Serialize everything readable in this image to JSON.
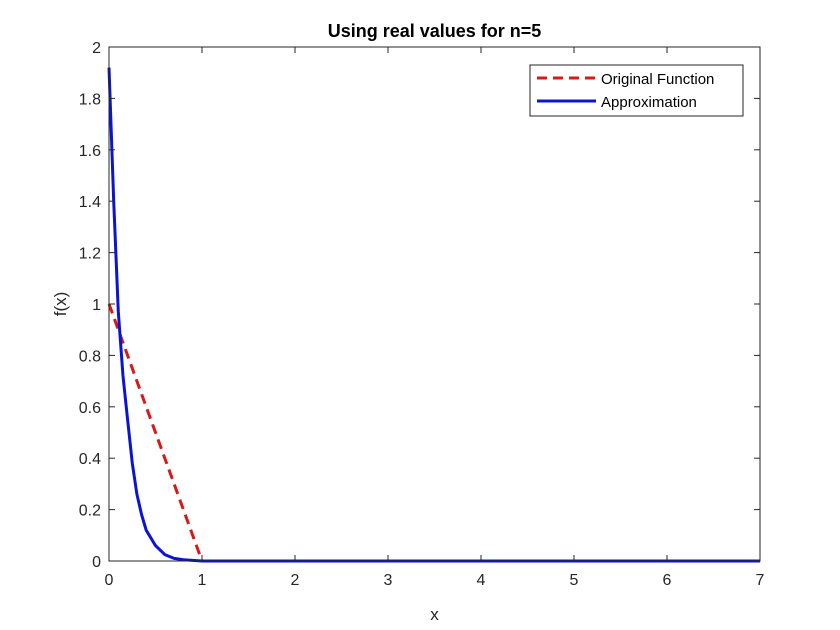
{
  "chart_data": {
    "type": "line",
    "title": "Using real values for n=5",
    "xlabel": "x",
    "ylabel": "f(x)",
    "xlim": [
      0,
      7
    ],
    "ylim": [
      0,
      2
    ],
    "xticks": [
      "0",
      "1",
      "2",
      "3",
      "4",
      "5",
      "6",
      "7"
    ],
    "yticks": [
      "0",
      "0.2",
      "0.4",
      "0.6",
      "0.8",
      "1",
      "1.2",
      "1.4",
      "1.6",
      "1.8",
      "2"
    ],
    "grid": false,
    "legend_position": "top-right",
    "series": [
      {
        "name": "Original Function",
        "color": "#d61a1a",
        "style": "dashed",
        "x": [
          0,
          1,
          2,
          3,
          4,
          5,
          6,
          7
        ],
        "y": [
          1,
          0,
          0,
          0,
          0,
          0,
          0,
          0
        ]
      },
      {
        "name": "Approximation",
        "color": "#0a14d2",
        "style": "solid",
        "x": [
          0,
          0.05,
          0.1,
          0.15,
          0.2,
          0.25,
          0.3,
          0.35,
          0.4,
          0.5,
          0.6,
          0.7,
          0.8,
          1.0,
          1.5,
          2,
          3,
          4,
          5,
          6,
          7
        ],
        "y": [
          1.92,
          1.4,
          0.97,
          0.72,
          0.55,
          0.38,
          0.26,
          0.18,
          0.12,
          0.06,
          0.025,
          0.01,
          0.005,
          0,
          0,
          0,
          0,
          0,
          0,
          0,
          0
        ]
      }
    ]
  }
}
